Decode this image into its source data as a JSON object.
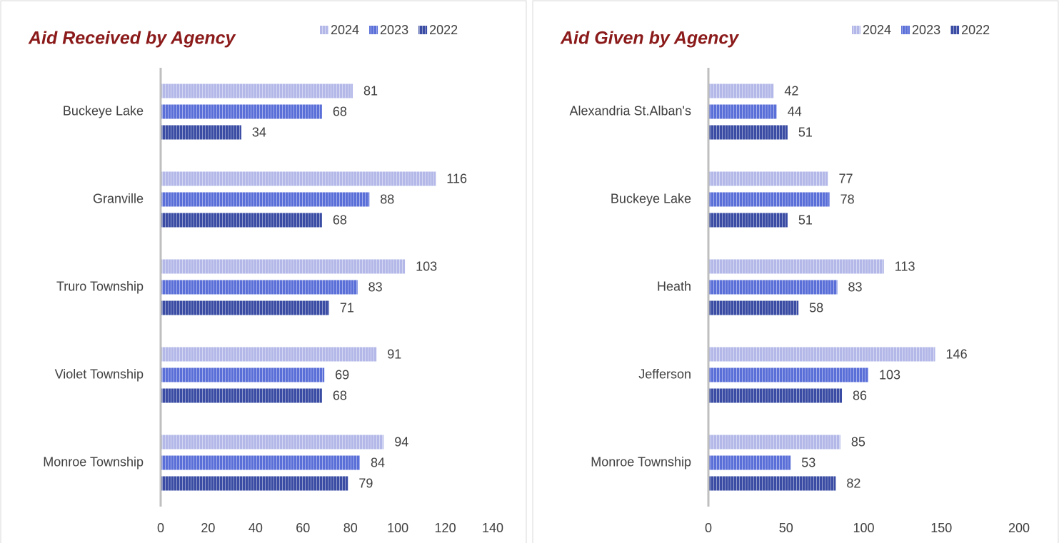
{
  "chart_data": [
    {
      "type": "bar",
      "orientation": "horizontal",
      "title": "Aid Received by Agency",
      "categories": [
        "Buckeye Lake",
        "Granville",
        "Truro Township",
        "Violet Township",
        "Monroe Township"
      ],
      "series": [
        {
          "name": "2024",
          "color": "#b3b8e8",
          "values": [
            81,
            116,
            103,
            91,
            94
          ]
        },
        {
          "name": "2023",
          "color": "#5b6fd8",
          "values": [
            68,
            88,
            83,
            69,
            84
          ]
        },
        {
          "name": "2022",
          "color": "#3a4ca3",
          "values": [
            34,
            68,
            71,
            68,
            79
          ]
        }
      ],
      "xlim": [
        0,
        140
      ],
      "xticks": [
        0,
        20,
        40,
        60,
        80,
        100,
        120,
        140
      ],
      "legend": "top-right"
    },
    {
      "type": "bar",
      "orientation": "horizontal",
      "title": "Aid Given by Agency",
      "categories": [
        "Alexandria St.Alban's",
        "Buckeye Lake",
        "Heath",
        "Jefferson",
        "Monroe Township"
      ],
      "series": [
        {
          "name": "2024",
          "color": "#b3b8e8",
          "values": [
            42,
            77,
            113,
            146,
            85
          ]
        },
        {
          "name": "2023",
          "color": "#5b6fd8",
          "values": [
            44,
            78,
            83,
            103,
            53
          ]
        },
        {
          "name": "2022",
          "color": "#3a4ca3",
          "values": [
            51,
            51,
            58,
            86,
            82
          ]
        }
      ],
      "xlim": [
        0,
        200
      ],
      "xticks": [
        0,
        50,
        100,
        150,
        200
      ],
      "legend": "top-right"
    }
  ]
}
